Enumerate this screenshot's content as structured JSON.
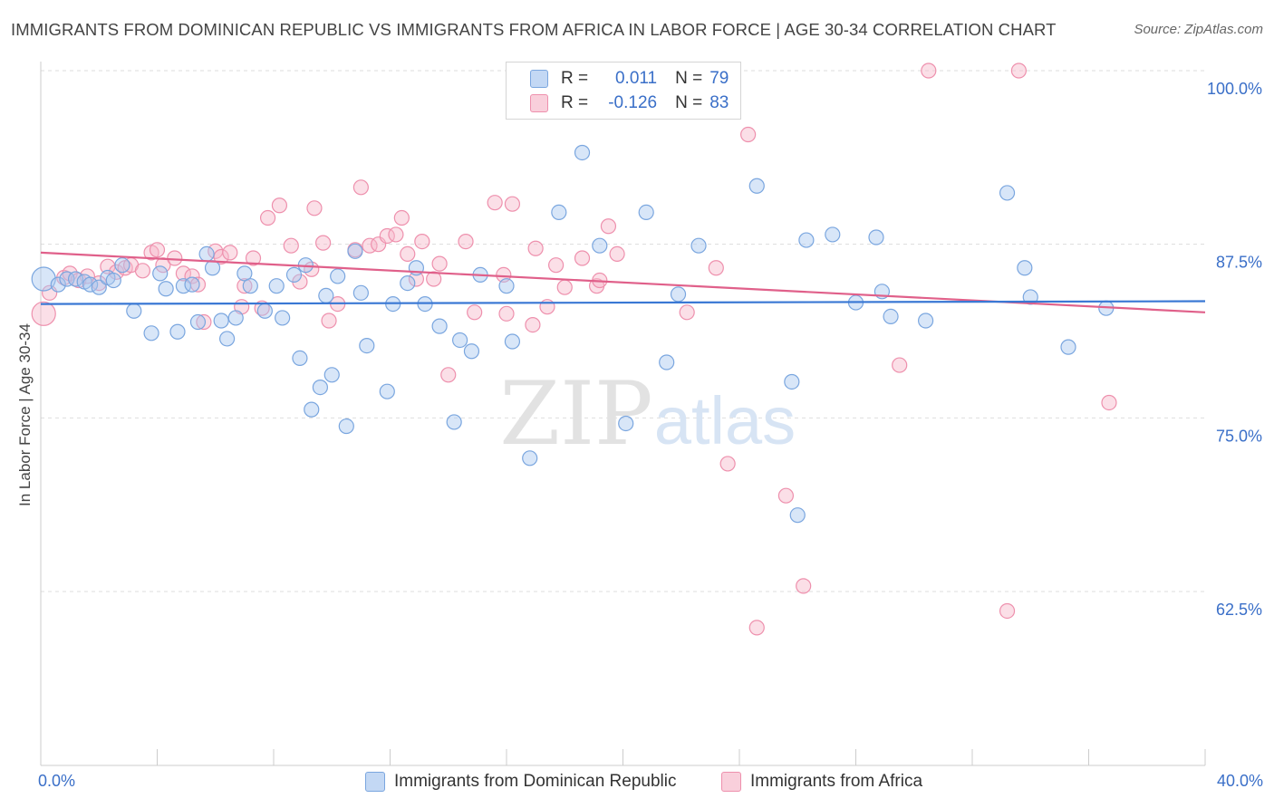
{
  "title": "IMMIGRANTS FROM DOMINICAN REPUBLIC VS IMMIGRANTS FROM AFRICA IN LABOR FORCE | AGE 30-34 CORRELATION CHART",
  "source": "Source: ZipAtlas.com",
  "watermark": {
    "zip": "ZIP",
    "atlas": "atlas"
  },
  "legend": {
    "r_label": "R =",
    "n_label": "N =",
    "series1": {
      "r": "0.011",
      "n": "79"
    },
    "series2": {
      "r": "-0.126",
      "n": "83"
    }
  },
  "colors": {
    "blue_fill": "#a9c7ef",
    "blue_stroke": "#7aa6df",
    "blue_line": "#3a78d4",
    "pink_fill": "#f6b8ca",
    "pink_stroke": "#ee90ad",
    "pink_line": "#e0608a",
    "grid": "#dddddd",
    "tick_text": "#3a6fc8"
  },
  "chart_data": {
    "type": "scatter",
    "ylabel": "In Labor Force | Age 30-34",
    "xlim": [
      0,
      40
    ],
    "ylim": [
      50,
      100
    ],
    "x_tick_labels": [
      "0.0%",
      "40.0%"
    ],
    "y_ticks": [
      100,
      87.5,
      75,
      62.5
    ],
    "y_tick_labels": [
      "100.0%",
      "87.5%",
      "75.0%",
      "62.5%"
    ],
    "grid": "horizontal dashed",
    "legend_position": "top-center",
    "series": [
      {
        "name": "Immigrants from Dominican Republic",
        "color": "#a9c7ef",
        "trend": [
          [
            0,
            83.2
          ],
          [
            40,
            83.4
          ]
        ],
        "points": [
          [
            0.1,
            85.0
          ],
          [
            0.6,
            84.6
          ],
          [
            0.9,
            85.0
          ],
          [
            1.2,
            85.0
          ],
          [
            1.5,
            84.8
          ],
          [
            1.7,
            84.6
          ],
          [
            2.0,
            84.4
          ],
          [
            2.3,
            85.1
          ],
          [
            2.5,
            84.9
          ],
          [
            2.8,
            86.0
          ],
          [
            3.2,
            82.7
          ],
          [
            3.8,
            81.1
          ],
          [
            4.1,
            85.4
          ],
          [
            4.3,
            84.3
          ],
          [
            4.7,
            81.2
          ],
          [
            4.9,
            84.5
          ],
          [
            5.2,
            84.6
          ],
          [
            5.4,
            81.9
          ],
          [
            5.7,
            86.8
          ],
          [
            5.9,
            85.8
          ],
          [
            6.2,
            82.0
          ],
          [
            6.4,
            80.7
          ],
          [
            6.7,
            82.2
          ],
          [
            7.0,
            85.4
          ],
          [
            7.2,
            84.5
          ],
          [
            7.7,
            82.7
          ],
          [
            8.1,
            84.5
          ],
          [
            8.3,
            82.2
          ],
          [
            8.7,
            85.3
          ],
          [
            8.9,
            79.3
          ],
          [
            9.1,
            86.0
          ],
          [
            9.3,
            75.6
          ],
          [
            9.6,
            77.2
          ],
          [
            9.8,
            83.8
          ],
          [
            10.0,
            78.1
          ],
          [
            10.2,
            85.2
          ],
          [
            10.5,
            74.4
          ],
          [
            10.8,
            87.0
          ],
          [
            11.0,
            84.0
          ],
          [
            11.2,
            80.2
          ],
          [
            11.9,
            76.9
          ],
          [
            12.1,
            83.2
          ],
          [
            12.6,
            84.7
          ],
          [
            12.9,
            85.8
          ],
          [
            13.2,
            83.2
          ],
          [
            13.7,
            81.6
          ],
          [
            14.2,
            74.7
          ],
          [
            14.4,
            80.6
          ],
          [
            14.8,
            79.8
          ],
          [
            15.1,
            85.3
          ],
          [
            16.0,
            84.5
          ],
          [
            16.2,
            80.5
          ],
          [
            16.8,
            72.1
          ],
          [
            17.8,
            89.8
          ],
          [
            18.6,
            94.1
          ],
          [
            19.2,
            87.4
          ],
          [
            20.1,
            74.6
          ],
          [
            20.8,
            89.8
          ],
          [
            21.5,
            79.0
          ],
          [
            21.9,
            83.9
          ],
          [
            22.6,
            87.4
          ],
          [
            24.6,
            91.7
          ],
          [
            25.8,
            77.6
          ],
          [
            26.0,
            68.0
          ],
          [
            26.3,
            87.8
          ],
          [
            27.2,
            88.2
          ],
          [
            28.0,
            83.3
          ],
          [
            28.7,
            88.0
          ],
          [
            28.9,
            84.1
          ],
          [
            29.2,
            82.3
          ],
          [
            30.4,
            82.0
          ],
          [
            33.2,
            91.2
          ],
          [
            33.8,
            85.8
          ],
          [
            34.0,
            83.7
          ],
          [
            35.3,
            80.1
          ],
          [
            36.6,
            82.9
          ]
        ]
      },
      {
        "name": "Immigrants from Africa",
        "color": "#f6b8ca",
        "trend": [
          [
            0,
            86.9
          ],
          [
            40,
            82.6
          ]
        ],
        "points": [
          [
            0.1,
            82.5
          ],
          [
            0.3,
            84.0
          ],
          [
            0.8,
            85.1
          ],
          [
            1.0,
            85.4
          ],
          [
            1.3,
            84.9
          ],
          [
            1.6,
            85.2
          ],
          [
            2.0,
            84.7
          ],
          [
            2.3,
            85.9
          ],
          [
            2.6,
            85.5
          ],
          [
            2.9,
            85.8
          ],
          [
            3.1,
            86.0
          ],
          [
            3.5,
            85.6
          ],
          [
            3.8,
            86.9
          ],
          [
            4.0,
            87.1
          ],
          [
            4.2,
            86.0
          ],
          [
            4.6,
            86.5
          ],
          [
            4.9,
            85.4
          ],
          [
            5.2,
            85.2
          ],
          [
            5.4,
            84.6
          ],
          [
            5.6,
            81.9
          ],
          [
            6.0,
            87.0
          ],
          [
            6.2,
            86.6
          ],
          [
            6.5,
            86.9
          ],
          [
            6.9,
            83.0
          ],
          [
            7.0,
            84.5
          ],
          [
            7.3,
            86.5
          ],
          [
            7.6,
            82.9
          ],
          [
            7.8,
            89.4
          ],
          [
            8.2,
            90.3
          ],
          [
            8.6,
            87.4
          ],
          [
            8.9,
            84.8
          ],
          [
            9.3,
            85.7
          ],
          [
            9.4,
            90.1
          ],
          [
            9.7,
            87.6
          ],
          [
            9.9,
            82.0
          ],
          [
            10.2,
            83.2
          ],
          [
            10.8,
            87.1
          ],
          [
            11.0,
            91.6
          ],
          [
            11.3,
            87.4
          ],
          [
            11.6,
            87.5
          ],
          [
            11.9,
            88.1
          ],
          [
            12.2,
            88.2
          ],
          [
            12.4,
            89.4
          ],
          [
            12.6,
            86.8
          ],
          [
            12.9,
            85.0
          ],
          [
            13.1,
            87.7
          ],
          [
            13.5,
            85.0
          ],
          [
            13.7,
            86.1
          ],
          [
            14.0,
            78.1
          ],
          [
            14.6,
            87.7
          ],
          [
            14.9,
            82.6
          ],
          [
            15.6,
            90.5
          ],
          [
            15.9,
            85.3
          ],
          [
            16.0,
            82.5
          ],
          [
            16.2,
            90.4
          ],
          [
            16.9,
            81.7
          ],
          [
            17.0,
            87.2
          ],
          [
            17.4,
            83.0
          ],
          [
            17.7,
            86.0
          ],
          [
            18.0,
            84.4
          ],
          [
            18.6,
            86.5
          ],
          [
            19.1,
            84.5
          ],
          [
            19.2,
            84.9
          ],
          [
            19.5,
            88.8
          ],
          [
            19.8,
            86.8
          ],
          [
            22.2,
            82.6
          ],
          [
            23.2,
            85.8
          ],
          [
            23.6,
            71.7
          ],
          [
            24.3,
            95.4
          ],
          [
            24.6,
            59.9
          ],
          [
            25.6,
            69.4
          ],
          [
            26.2,
            62.9
          ],
          [
            29.5,
            78.8
          ],
          [
            30.5,
            100.0
          ],
          [
            33.2,
            61.1
          ],
          [
            33.6,
            100.0
          ],
          [
            36.7,
            76.1
          ]
        ]
      }
    ]
  },
  "bottom_legend": {
    "series1_label": "Immigrants from Dominican Republic",
    "series2_label": "Immigrants from Africa"
  }
}
